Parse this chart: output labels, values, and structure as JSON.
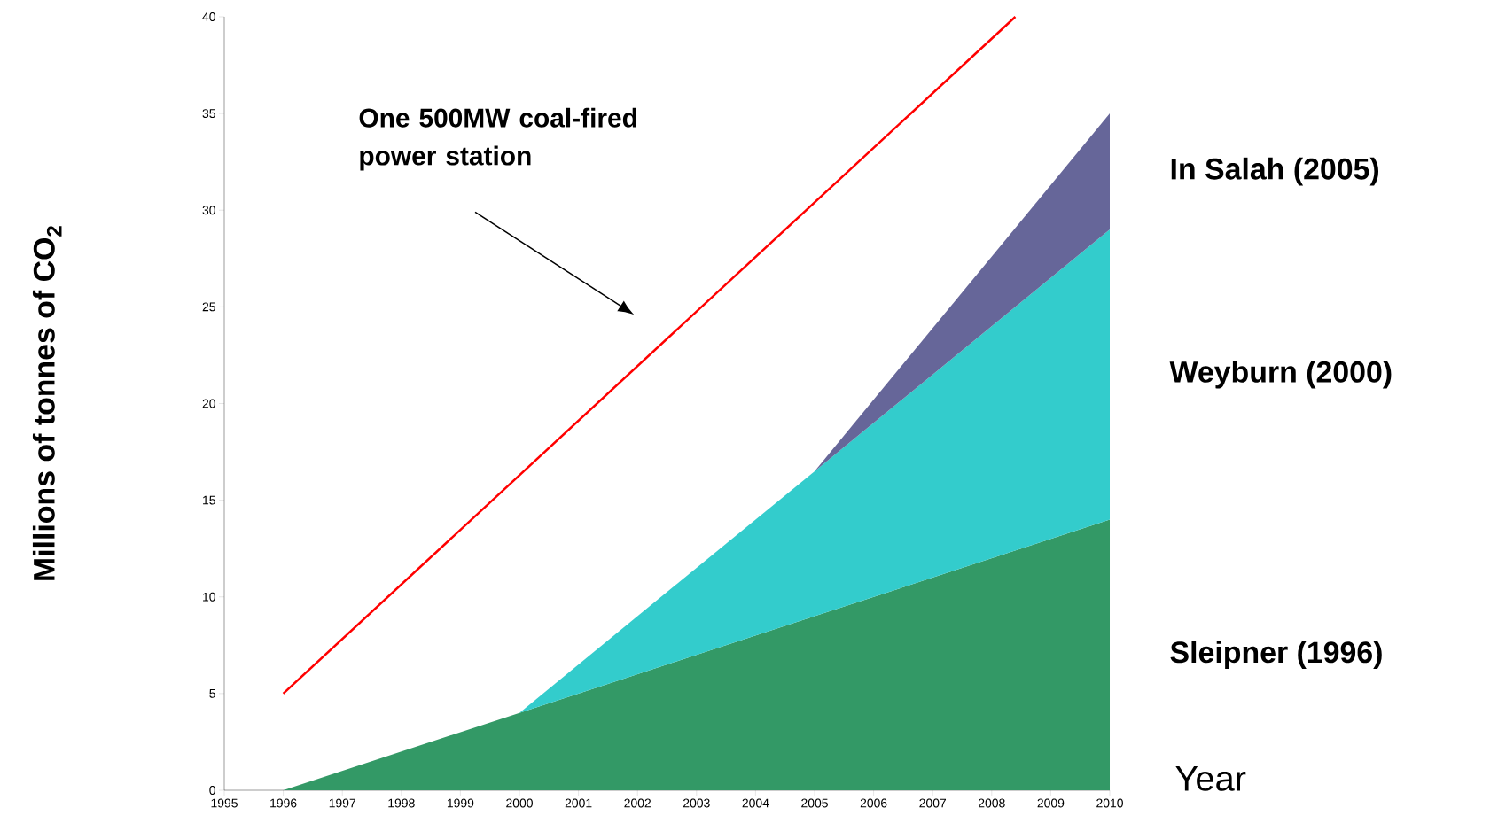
{
  "chart_data": {
    "type": "area",
    "stacked": true,
    "xlabel": "Year",
    "ylabel": "Millions of tonnes of CO$_{2}$",
    "annotations": [
      "One 500MW coal-fired power station"
    ],
    "x": [
      1996,
      2000,
      2005,
      2010
    ],
    "series": [
      {
        "name": "Sleipner (1996)",
        "color": "#339966",
        "values": [
          0,
          4,
          9,
          14
        ]
      },
      {
        "name": "Weyburn (2000)",
        "color": "#33cccc",
        "values": [
          null,
          0,
          7.5,
          15
        ]
      },
      {
        "name": "In Salah (2005)",
        "color": "#666699",
        "values": [
          null,
          null,
          0,
          6
        ]
      },
      {
        "type": "line",
        "color": "#ff0000",
        "x": [
          1996,
          2008.4
        ],
        "values": [
          5,
          40
        ]
      }
    ],
    "xlim": [
      1995,
      2010
    ],
    "ylim": [
      0,
      40
    ],
    "xticks": [
      1995,
      1996,
      1997,
      1998,
      1999,
      2000,
      2001,
      2002,
      2003,
      2004,
      2005,
      2006,
      2007,
      2008,
      2009,
      2010
    ],
    "yticks": [
      0,
      5,
      10,
      15,
      20,
      25,
      30,
      35,
      40
    ]
  }
}
